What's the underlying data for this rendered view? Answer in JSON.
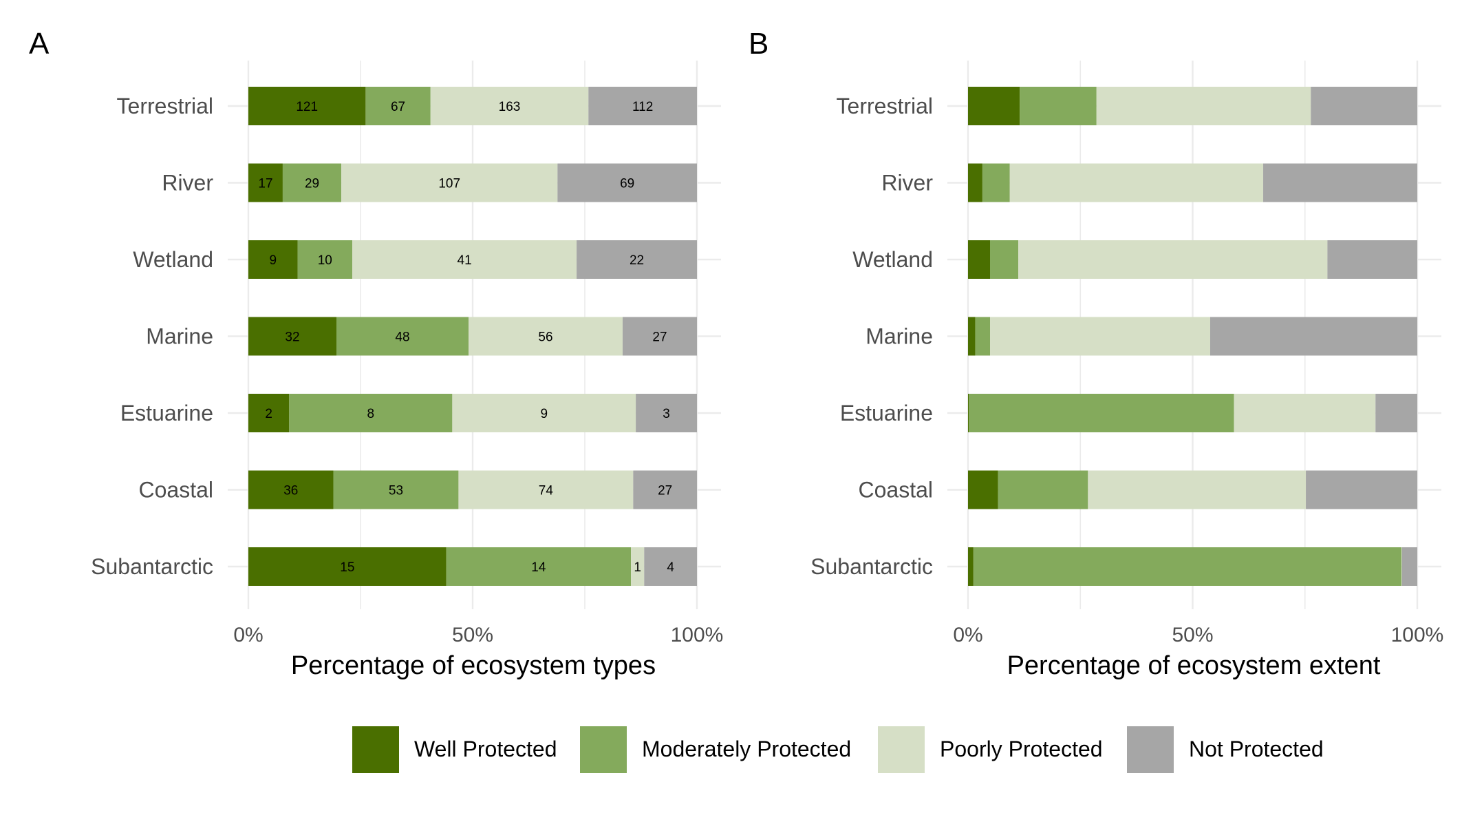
{
  "legend": {
    "items": [
      {
        "label": "Well Protected",
        "color": "#4a6f00"
      },
      {
        "label": "Moderately Protected",
        "color": "#84aa5c"
      },
      {
        "label": "Poorly Protected",
        "color": "#d6dfc6"
      },
      {
        "label": "Not Protected",
        "color": "#a6a6a6"
      }
    ]
  },
  "chart_data": [
    {
      "panel": "A",
      "type": "bar",
      "orientation": "horizontal",
      "stacked": "percent",
      "xlabel": "Percentage of ecosystem types",
      "xticks": [
        "0%",
        "50%",
        "100%"
      ],
      "categories": [
        "Terrestrial",
        "River",
        "Wetland",
        "Marine",
        "Estuarine",
        "Coastal",
        "Subantarctic"
      ],
      "series": [
        {
          "name": "Well Protected",
          "values": [
            121,
            17,
            9,
            32,
            2,
            36,
            15
          ]
        },
        {
          "name": "Moderately Protected",
          "values": [
            67,
            29,
            10,
            48,
            8,
            53,
            14
          ]
        },
        {
          "name": "Poorly Protected",
          "values": [
            163,
            107,
            41,
            56,
            9,
            74,
            1
          ]
        },
        {
          "name": "Not Protected",
          "values": [
            112,
            69,
            22,
            27,
            3,
            27,
            4
          ]
        }
      ],
      "data_labels": true,
      "grid": true
    },
    {
      "panel": "B",
      "type": "bar",
      "orientation": "horizontal",
      "stacked": "percent",
      "xlabel": "Percentage of ecosystem extent",
      "xticks": [
        "0%",
        "50%",
        "100%"
      ],
      "categories": [
        "Terrestrial",
        "River",
        "Wetland",
        "Marine",
        "Estuarine",
        "Coastal",
        "Subantarctic"
      ],
      "series": [
        {
          "name": "Well Protected",
          "values": [
            11.5,
            3.2,
            4.9,
            1.6,
            0.2,
            6.7,
            1.2
          ]
        },
        {
          "name": "Moderately Protected",
          "values": [
            17.1,
            6.1,
            6.3,
            3.3,
            59.0,
            20.0,
            95.3
          ]
        },
        {
          "name": "Poorly Protected",
          "values": [
            47.7,
            56.4,
            68.8,
            49.0,
            31.5,
            48.5,
            0.1
          ]
        },
        {
          "name": "Not Protected",
          "values": [
            23.7,
            34.3,
            20.0,
            46.1,
            9.3,
            24.8,
            3.4
          ]
        }
      ],
      "data_labels": false,
      "grid": true
    }
  ]
}
